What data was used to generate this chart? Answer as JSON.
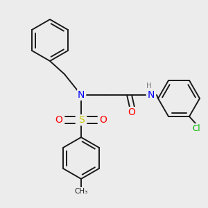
{
  "bg_color": "#ececec",
  "atom_colors": {
    "N": "#0000ff",
    "O": "#ff0000",
    "S": "#cccc00",
    "Cl": "#00b300",
    "H": "#7a7a7a",
    "C": "#1a1a1a"
  },
  "bond_color": "#1a1a1a",
  "bond_lw": 1.4,
  "font_size_atom": 8.5,
  "fig_w": 3.0,
  "fig_h": 3.0,
  "dpi": 100
}
